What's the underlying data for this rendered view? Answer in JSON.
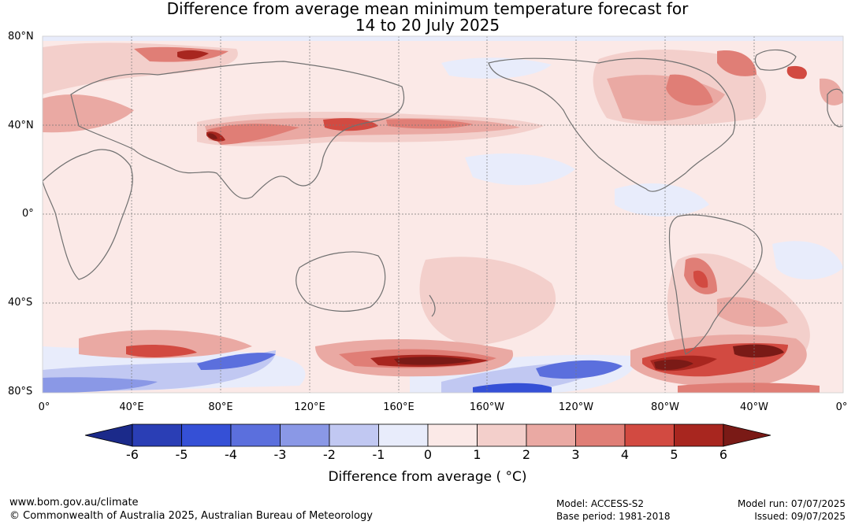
{
  "title": {
    "line1": "Difference from average mean minimum temperature forecast for",
    "line2": "14 to 20 July 2025"
  },
  "map": {
    "latitude_labels": [
      "80°N",
      "40°N",
      "0°",
      "40°S",
      "80°S"
    ],
    "longitude_labels": [
      "0°",
      "40°E",
      "80°E",
      "120°E",
      "160°E",
      "160°W",
      "120°W",
      "80°W",
      "40°W",
      "0°"
    ],
    "colors": {
      "ocean_neutral": "#fbe9e7",
      "warm_1": "#f3cfcb",
      "warm_2": "#eaa9a3",
      "warm_3": "#e07e76",
      "warm_4": "#d24a41",
      "warm_5": "#a8261f",
      "warm_6": "#7a1a16",
      "cool_1": "#e8ecfb",
      "cool_2": "#c1c8f2",
      "cool_3": "#8a98e6",
      "cool_4": "#5b6fdd",
      "cool_5": "#3550d6",
      "coast": "#707070"
    }
  },
  "colorbar": {
    "ticks": [
      "-6",
      "-5",
      "-4",
      "-3",
      "-2",
      "-1",
      "0",
      "1",
      "2",
      "3",
      "4",
      "5",
      "6"
    ],
    "colors": [
      "#1b2a8a",
      "#2a3eb5",
      "#3550d6",
      "#5b6fdd",
      "#8a98e6",
      "#c1c8f2",
      "#e8ecfb",
      "#fbe9e7",
      "#f3cfcb",
      "#eaa9a3",
      "#e07e76",
      "#d24a41",
      "#a8261f",
      "#7a1a16"
    ],
    "label": "Difference from average ( °C)"
  },
  "footer": {
    "website": "www.bom.gov.au/climate",
    "copyright": "© Commonwealth of Australia 2025, Australian Bureau of Meteorology",
    "model": "Model: ACCESS-S2",
    "base_period": "Base period: 1981-2018",
    "model_run": "Model run: 07/07/2025",
    "issued": "Issued: 09/07/2025"
  }
}
